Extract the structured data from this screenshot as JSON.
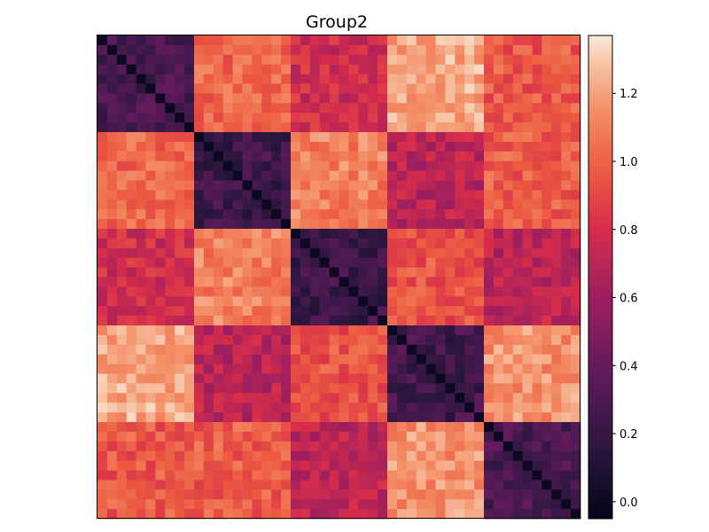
{
  "chart_data": {
    "type": "heatmap",
    "title": "Group2",
    "xlabel": "",
    "ylabel": "",
    "n": 50,
    "block_size": 10,
    "block_mean": [
      [
        0.28,
        1.02,
        0.78,
        1.22,
        0.96
      ],
      [
        1.02,
        0.24,
        1.1,
        0.7,
        0.98
      ],
      [
        0.78,
        1.1,
        0.22,
        0.94,
        0.7
      ],
      [
        1.22,
        0.7,
        0.94,
        0.26,
        1.16
      ],
      [
        0.96,
        0.98,
        0.7,
        1.16,
        0.28
      ]
    ],
    "diagonal_value": 0.0,
    "colorbar": {
      "range": [
        -0.05,
        1.37
      ],
      "ticks": [
        "0.0",
        "0.2",
        "0.4",
        "0.6",
        "0.8",
        "1.0",
        "1.2"
      ],
      "tick_values": [
        0.0,
        0.2,
        0.4,
        0.6,
        0.8,
        1.0,
        1.2
      ],
      "colormap": "rocket"
    },
    "grid": false
  }
}
